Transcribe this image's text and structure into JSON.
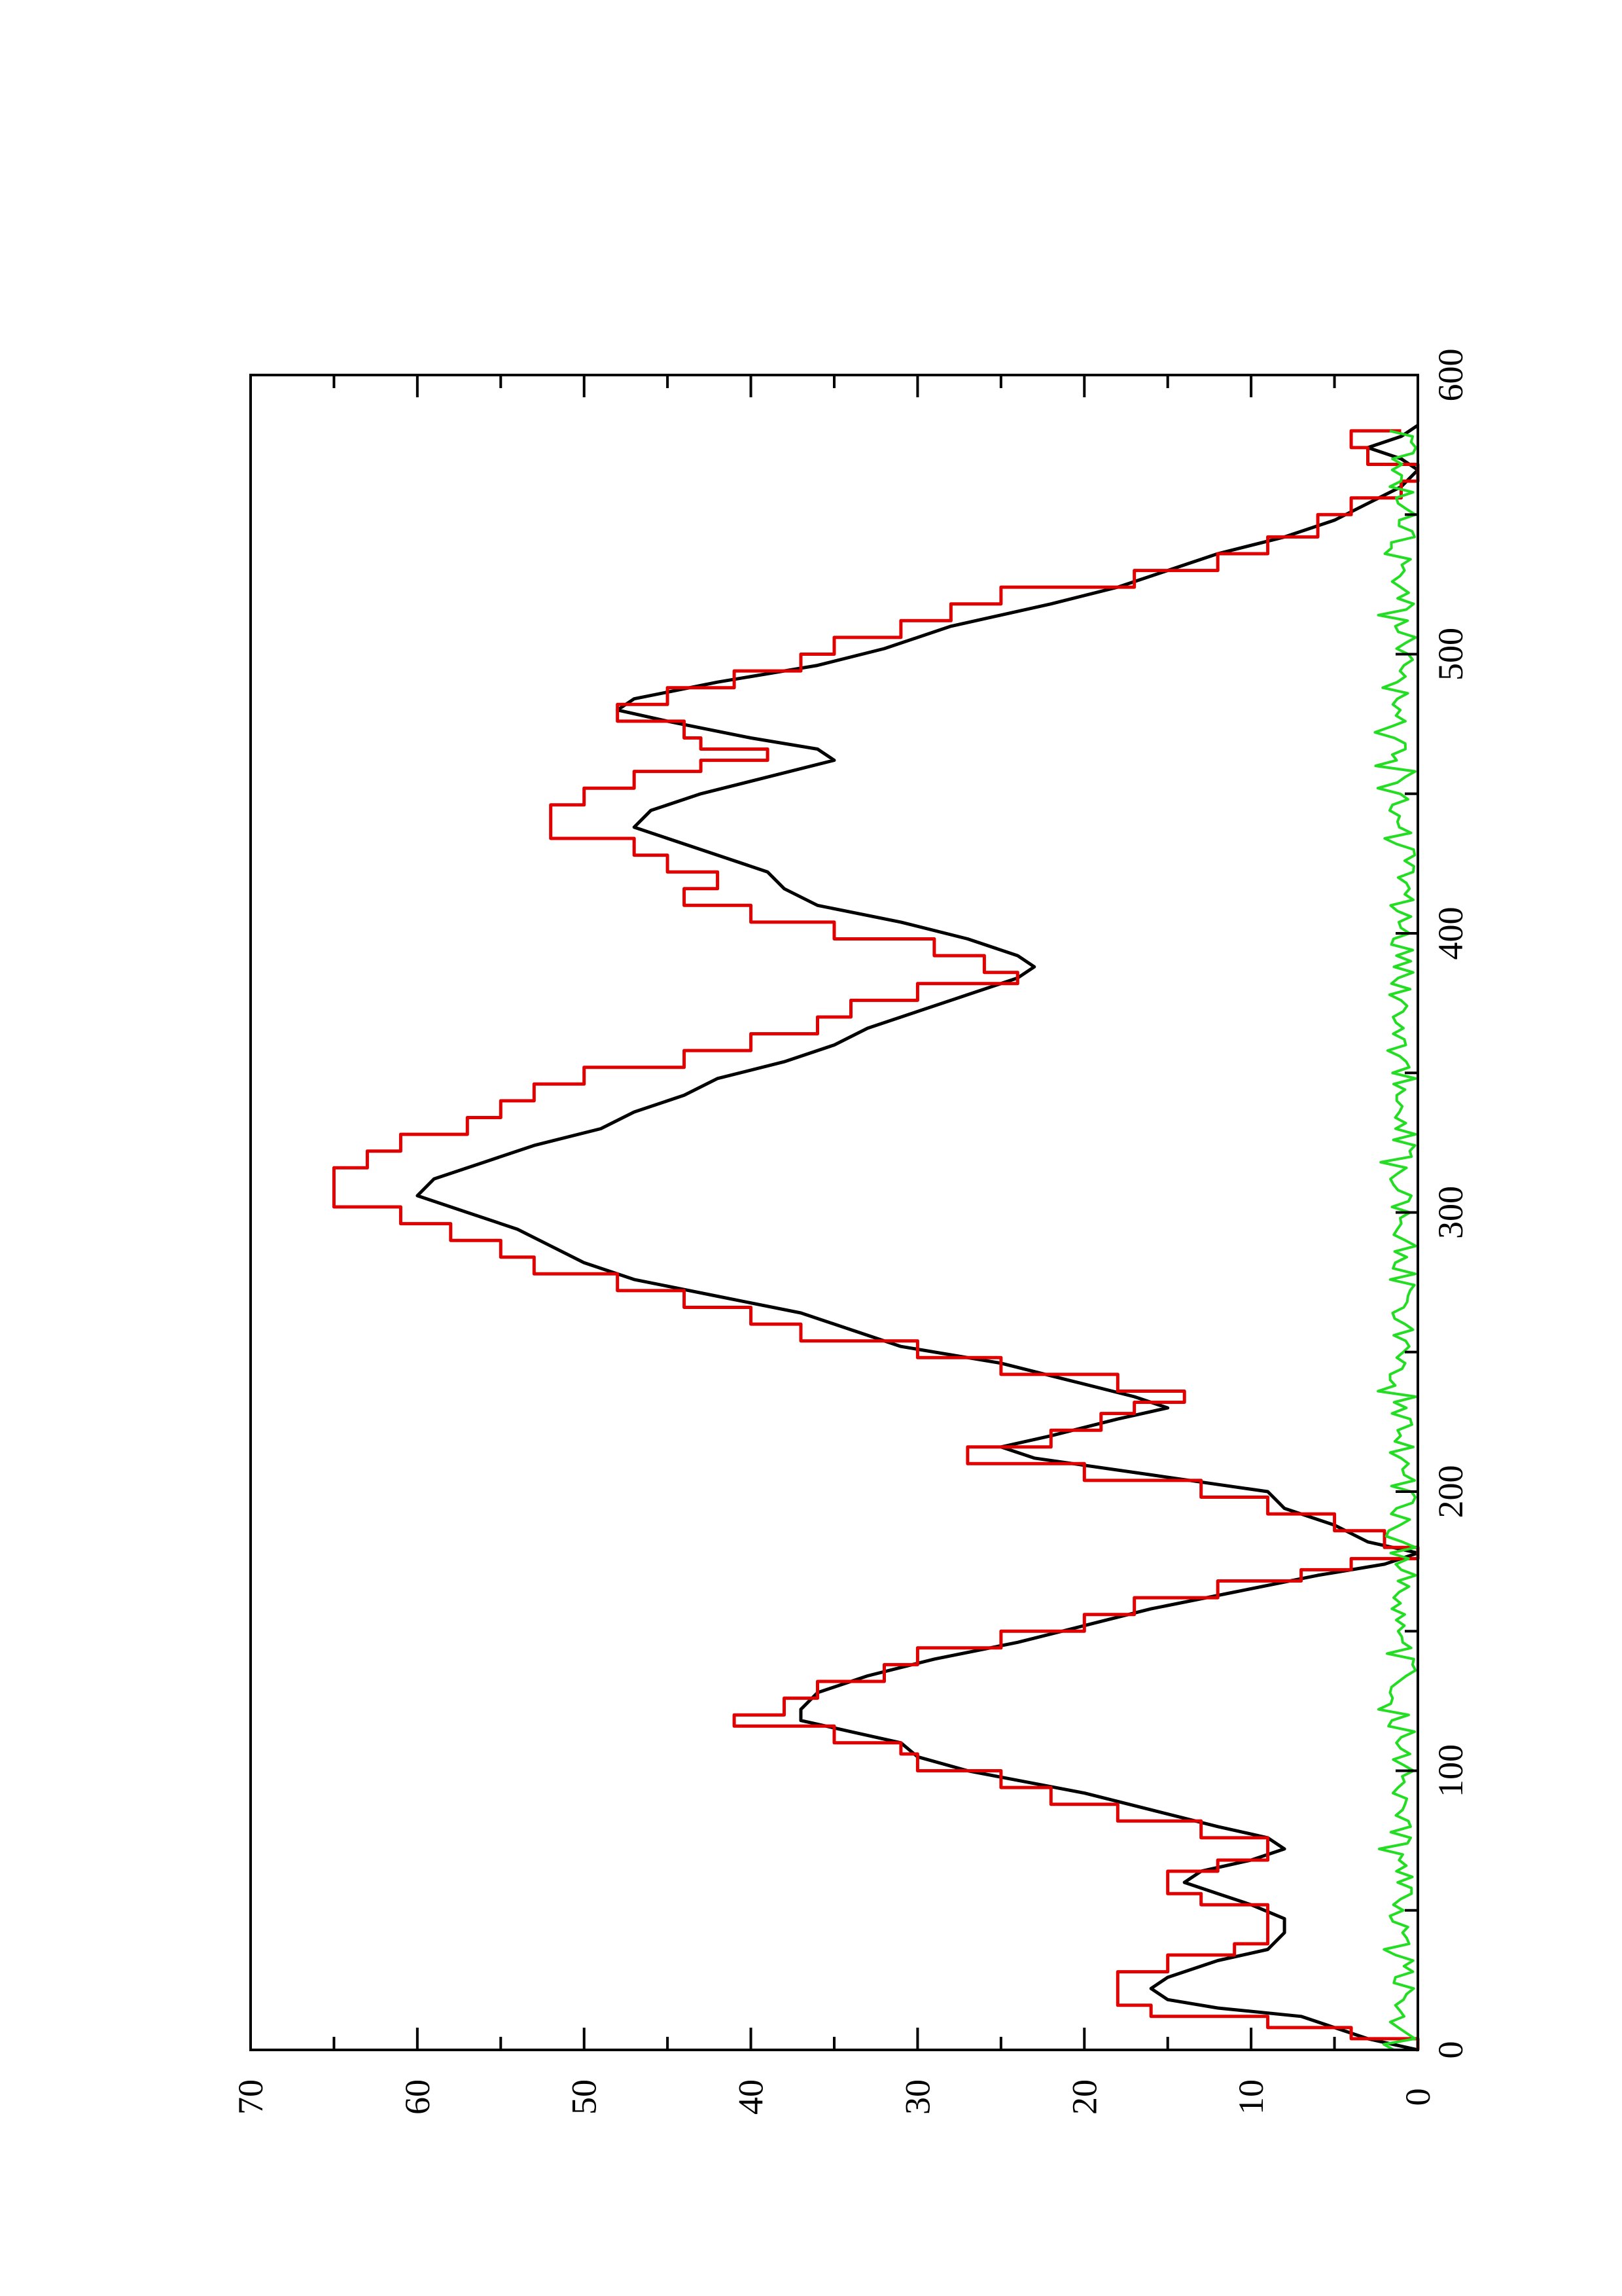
{
  "chart_data": {
    "type": "line",
    "orientation": "rotated-90-ccw",
    "title": "",
    "xlabel": "",
    "ylabel": "",
    "xlim": [
      0,
      600
    ],
    "ylim": [
      0,
      70
    ],
    "x_ticks": [
      0,
      100,
      200,
      300,
      400,
      500,
      600
    ],
    "y_ticks": [
      0,
      10,
      20,
      30,
      40,
      50,
      60,
      70
    ],
    "x_tick_labels": [
      "0",
      "100",
      "200",
      "300",
      "400",
      "500",
      "600"
    ],
    "y_tick_labels": [
      "0",
      "10",
      "20",
      "30",
      "40",
      "50",
      "60",
      "70"
    ],
    "grid": false,
    "legend": "none",
    "series": [
      {
        "color": "#000000",
        "style": "smooth",
        "points": [
          [
            0,
            0
          ],
          [
            4,
            3
          ],
          [
            8,
            5
          ],
          [
            12,
            7
          ],
          [
            15,
            12
          ],
          [
            18,
            15
          ],
          [
            22,
            16
          ],
          [
            26,
            15
          ],
          [
            32,
            12
          ],
          [
            36,
            9
          ],
          [
            42,
            8
          ],
          [
            47,
            8
          ],
          [
            52,
            10
          ],
          [
            56,
            12
          ],
          [
            60,
            14
          ],
          [
            64,
            13
          ],
          [
            68,
            10
          ],
          [
            72,
            8
          ],
          [
            76,
            9
          ],
          [
            80,
            12
          ],
          [
            86,
            16
          ],
          [
            92,
            20
          ],
          [
            100,
            27
          ],
          [
            105,
            30
          ],
          [
            110,
            31
          ],
          [
            114,
            34
          ],
          [
            118,
            37
          ],
          [
            122,
            37
          ],
          [
            128,
            36
          ],
          [
            134,
            33
          ],
          [
            140,
            29
          ],
          [
            146,
            24
          ],
          [
            152,
            20
          ],
          [
            158,
            16
          ],
          [
            164,
            11
          ],
          [
            170,
            6
          ],
          [
            174,
            2
          ],
          [
            178,
            0
          ],
          [
            182,
            3
          ],
          [
            188,
            5
          ],
          [
            194,
            8
          ],
          [
            200,
            9
          ],
          [
            206,
            16
          ],
          [
            212,
            23
          ],
          [
            216,
            25
          ],
          [
            220,
            22
          ],
          [
            226,
            18
          ],
          [
            230,
            15
          ],
          [
            234,
            17
          ],
          [
            240,
            21
          ],
          [
            246,
            25
          ],
          [
            252,
            31
          ],
          [
            258,
            34
          ],
          [
            264,
            37
          ],
          [
            270,
            42
          ],
          [
            276,
            47
          ],
          [
            282,
            50
          ],
          [
            288,
            52
          ],
          [
            294,
            54
          ],
          [
            300,
            57
          ],
          [
            306,
            60
          ],
          [
            312,
            59
          ],
          [
            318,
            56
          ],
          [
            324,
            53
          ],
          [
            330,
            49
          ],
          [
            336,
            47
          ],
          [
            342,
            44
          ],
          [
            348,
            42
          ],
          [
            354,
            38
          ],
          [
            360,
            35
          ],
          [
            366,
            33
          ],
          [
            372,
            30
          ],
          [
            378,
            27
          ],
          [
            384,
            24
          ],
          [
            388,
            23
          ],
          [
            392,
            24
          ],
          [
            398,
            27
          ],
          [
            404,
            31
          ],
          [
            410,
            36
          ],
          [
            416,
            38
          ],
          [
            422,
            39
          ],
          [
            430,
            43
          ],
          [
            438,
            47
          ],
          [
            444,
            46
          ],
          [
            450,
            43
          ],
          [
            456,
            39
          ],
          [
            462,
            35
          ],
          [
            466,
            36
          ],
          [
            470,
            40
          ],
          [
            476,
            45
          ],
          [
            480,
            48
          ],
          [
            484,
            47
          ],
          [
            490,
            42
          ],
          [
            496,
            36
          ],
          [
            502,
            32
          ],
          [
            510,
            28
          ],
          [
            518,
            22
          ],
          [
            524,
            18
          ],
          [
            530,
            15
          ],
          [
            536,
            12
          ],
          [
            542,
            8
          ],
          [
            548,
            5
          ],
          [
            554,
            3
          ],
          [
            560,
            1
          ],
          [
            566,
            0
          ],
          [
            570,
            1
          ],
          [
            574,
            3
          ],
          [
            578,
            1
          ],
          [
            582,
            0
          ]
        ]
      },
      {
        "color": "#e00000",
        "style": "stepped",
        "points": [
          [
            0,
            0
          ],
          [
            4,
            4
          ],
          [
            8,
            9
          ],
          [
            12,
            16
          ],
          [
            16,
            18
          ],
          [
            22,
            18
          ],
          [
            28,
            15
          ],
          [
            34,
            11
          ],
          [
            38,
            9
          ],
          [
            44,
            9
          ],
          [
            48,
            9
          ],
          [
            52,
            13
          ],
          [
            56,
            15
          ],
          [
            60,
            15
          ],
          [
            64,
            12
          ],
          [
            68,
            9
          ],
          [
            72,
            9
          ],
          [
            76,
            13
          ],
          [
            82,
            18
          ],
          [
            88,
            22
          ],
          [
            94,
            25
          ],
          [
            100,
            30
          ],
          [
            106,
            31
          ],
          [
            110,
            35
          ],
          [
            116,
            41
          ],
          [
            120,
            38
          ],
          [
            126,
            36
          ],
          [
            132,
            32
          ],
          [
            138,
            30
          ],
          [
            144,
            25
          ],
          [
            150,
            20
          ],
          [
            156,
            17
          ],
          [
            162,
            12
          ],
          [
            168,
            7
          ],
          [
            172,
            4
          ],
          [
            176,
            0
          ],
          [
            180,
            2
          ],
          [
            186,
            5
          ],
          [
            192,
            9
          ],
          [
            198,
            13
          ],
          [
            204,
            20
          ],
          [
            210,
            27
          ],
          [
            216,
            22
          ],
          [
            222,
            19
          ],
          [
            228,
            17
          ],
          [
            232,
            14
          ],
          [
            236,
            18
          ],
          [
            242,
            25
          ],
          [
            248,
            30
          ],
          [
            254,
            37
          ],
          [
            260,
            40
          ],
          [
            266,
            44
          ],
          [
            272,
            48
          ],
          [
            278,
            53
          ],
          [
            284,
            55
          ],
          [
            290,
            58
          ],
          [
            296,
            61
          ],
          [
            302,
            65
          ],
          [
            310,
            65
          ],
          [
            316,
            63
          ],
          [
            322,
            61
          ],
          [
            328,
            57
          ],
          [
            334,
            55
          ],
          [
            340,
            53
          ],
          [
            346,
            50
          ],
          [
            352,
            44
          ],
          [
            358,
            40
          ],
          [
            364,
            36
          ],
          [
            370,
            34
          ],
          [
            376,
            30
          ],
          [
            382,
            24
          ],
          [
            386,
            26
          ],
          [
            392,
            29
          ],
          [
            398,
            35
          ],
          [
            404,
            40
          ],
          [
            410,
            44
          ],
          [
            416,
            42
          ],
          [
            422,
            45
          ],
          [
            428,
            47
          ],
          [
            434,
            52
          ],
          [
            440,
            52
          ],
          [
            446,
            50
          ],
          [
            452,
            47
          ],
          [
            458,
            43
          ],
          [
            462,
            39
          ],
          [
            466,
            43
          ],
          [
            470,
            44
          ],
          [
            476,
            48
          ],
          [
            482,
            45
          ],
          [
            488,
            41
          ],
          [
            494,
            37
          ],
          [
            500,
            35
          ],
          [
            506,
            31
          ],
          [
            512,
            28
          ],
          [
            518,
            25
          ],
          [
            524,
            17
          ],
          [
            530,
            12
          ],
          [
            536,
            9
          ],
          [
            542,
            6
          ],
          [
            550,
            4
          ],
          [
            556,
            1
          ],
          [
            562,
            0
          ],
          [
            568,
            3
          ],
          [
            574,
            4
          ],
          [
            580,
            1
          ]
        ]
      },
      {
        "color": "#22dd22",
        "style": "noisy",
        "seed": 7,
        "mean": 0.9,
        "amplitude": 0.8,
        "x_range": [
          0,
          580
        ]
      }
    ]
  }
}
